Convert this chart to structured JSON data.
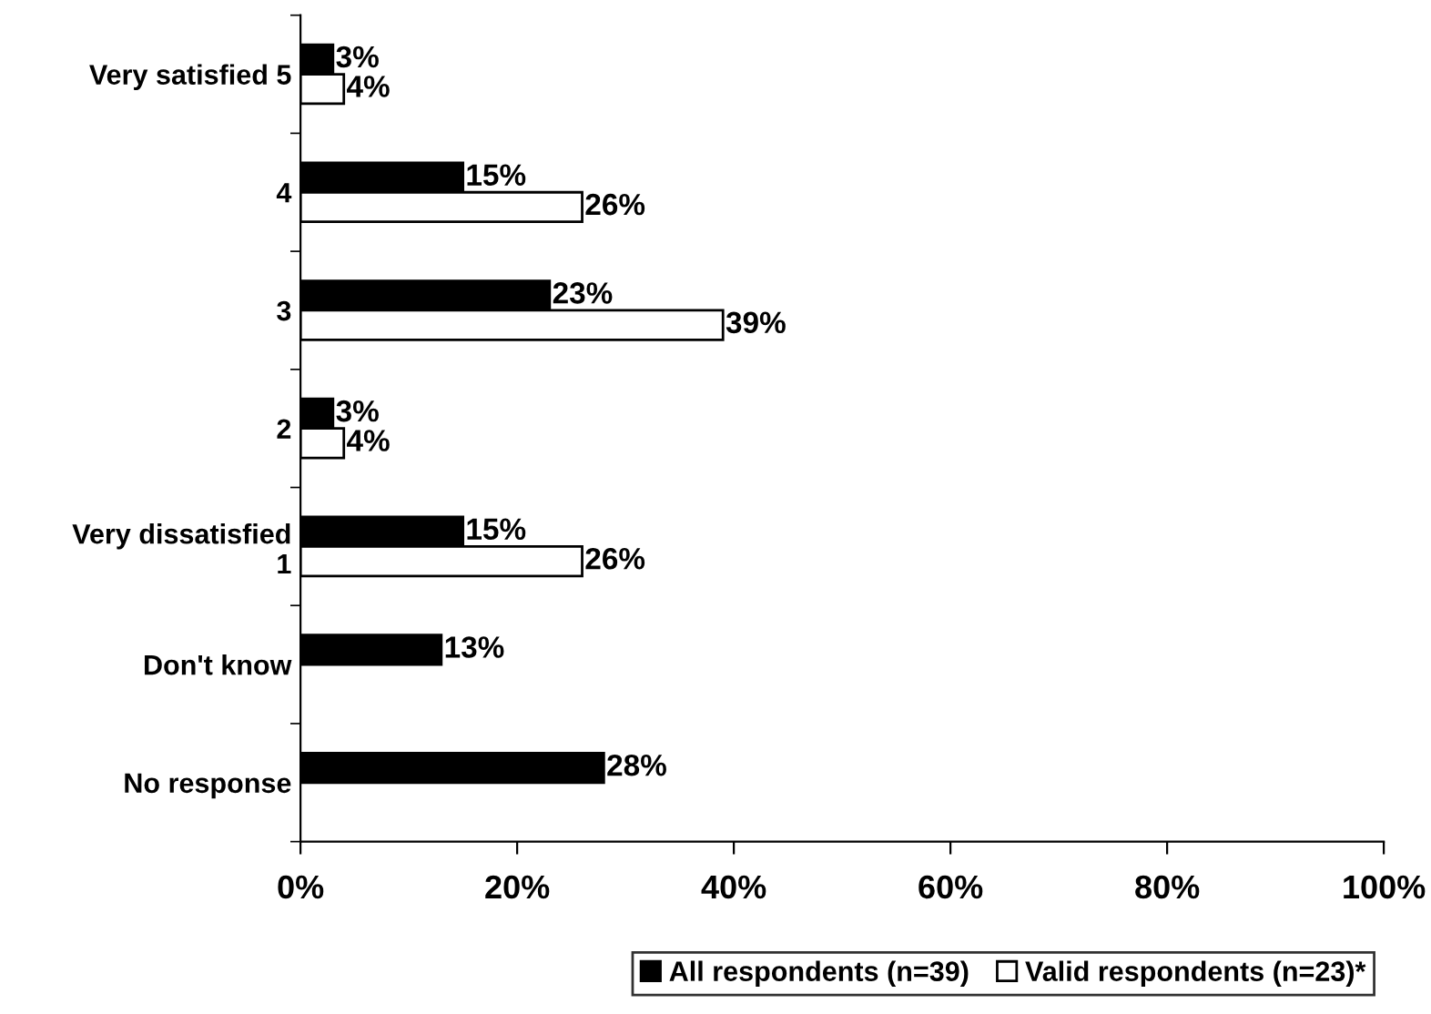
{
  "chart_data": {
    "type": "bar",
    "orientation": "horizontal",
    "categories": [
      "Very satisfied 5",
      "4",
      "3",
      "2",
      "Very dissatisfied\n1",
      "Don't know",
      "No response"
    ],
    "series": [
      {
        "name": "All respondents (n=39)",
        "color": "#000000",
        "values": [
          3,
          15,
          23,
          3,
          15,
          13,
          28
        ],
        "value_labels": [
          "3%",
          "15%",
          "23%",
          "3%",
          "15%",
          "13%",
          "28%"
        ]
      },
      {
        "name": "Valid respondents (n=23)*",
        "color": "#ffffff",
        "values": [
          4,
          26,
          39,
          4,
          26,
          null,
          null
        ],
        "value_labels": [
          "4%",
          "26%",
          "39%",
          "4%",
          "26%",
          null,
          null
        ]
      }
    ],
    "xlim": [
      0,
      100
    ],
    "xticks": [
      {
        "value": 0,
        "label": "0%"
      },
      {
        "value": 20,
        "label": "20%"
      },
      {
        "value": 40,
        "label": "40%"
      },
      {
        "value": 60,
        "label": "60%"
      },
      {
        "value": 80,
        "label": "80%"
      },
      {
        "value": 100,
        "label": "100%"
      }
    ],
    "grid": false,
    "legend": "bottom"
  }
}
